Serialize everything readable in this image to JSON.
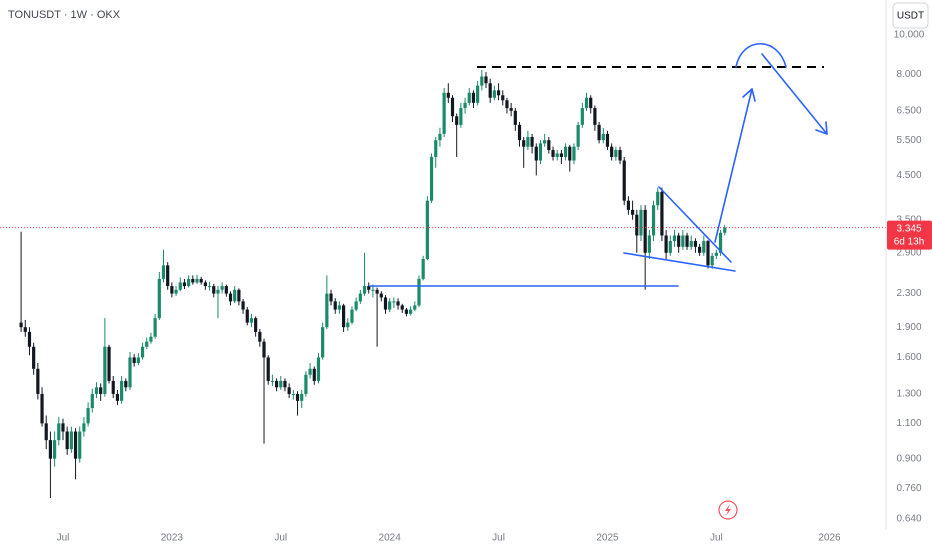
{
  "chart_data": {
    "type": "candlestick",
    "title": "TONUSDT · 1W · OKX",
    "currency": "USDT",
    "last_price": 3.345,
    "countdown": "6d 13h",
    "log_scale": true,
    "grid": false,
    "up_color": "#1b8a6b",
    "down_color": "#131722",
    "last_price_color": "#f23645",
    "ylim": [
      0.6,
      12.2
    ],
    "yticks": [
      {
        "value": 10,
        "label": "10.000"
      },
      {
        "value": 8,
        "label": "8.000"
      },
      {
        "value": 6.5,
        "label": "6.500"
      },
      {
        "value": 5.5,
        "label": "5.500"
      },
      {
        "value": 4.5,
        "label": "4.500"
      },
      {
        "value": 3.5,
        "label": "3.500"
      },
      {
        "value": 2.9,
        "label": "2.900"
      },
      {
        "value": 2.3,
        "label": "2.300"
      },
      {
        "value": 1.9,
        "label": "1.900"
      },
      {
        "value": 1.6,
        "label": "1.600"
      },
      {
        "value": 1.3,
        "label": "1.300"
      },
      {
        "value": 1.1,
        "label": "1.100"
      },
      {
        "value": 0.9,
        "label": "0.900"
      },
      {
        "value": 0.76,
        "label": "0.760"
      },
      {
        "value": 0.64,
        "label": "0.640"
      }
    ],
    "categories": [
      null,
      null,
      null,
      null,
      null,
      null,
      null,
      null,
      null,
      null,
      "Jul",
      null,
      null,
      null,
      null,
      null,
      null,
      null,
      null,
      null,
      null,
      null,
      null,
      null,
      null,
      null,
      null,
      null,
      null,
      null,
      null,
      null,
      null,
      null,
      null,
      null,
      "2023",
      null,
      null,
      null,
      null,
      null,
      null,
      null,
      null,
      null,
      null,
      null,
      null,
      null,
      null,
      null,
      null,
      null,
      null,
      null,
      null,
      null,
      null,
      null,
      null,
      null,
      "Jul",
      null,
      null,
      null,
      null,
      null,
      null,
      null,
      null,
      null,
      null,
      null,
      null,
      null,
      null,
      null,
      null,
      null,
      null,
      null,
      null,
      null,
      null,
      null,
      null,
      null,
      "2024",
      null,
      null,
      null,
      null,
      null,
      null,
      null,
      null,
      null,
      null,
      null,
      null,
      null,
      null,
      null,
      null,
      null,
      null,
      null,
      null,
      null,
      null,
      null,
      null,
      null,
      "Jul",
      null,
      null,
      null,
      null,
      null,
      null,
      null,
      null,
      null,
      null,
      null,
      null,
      null,
      null,
      null,
      null,
      null,
      null,
      null,
      null,
      null,
      null,
      null,
      null,
      null,
      "2025",
      null,
      null,
      null,
      null,
      null,
      null,
      null,
      null,
      null,
      null,
      null,
      null,
      null,
      null,
      null,
      null,
      null,
      null,
      null,
      null,
      null,
      null,
      null,
      null,
      null,
      "Jul",
      null,
      null,
      null,
      null,
      null,
      null,
      null,
      null,
      null,
      null,
      null,
      null,
      null,
      null,
      null,
      null,
      null,
      null,
      null,
      null,
      null,
      null,
      null,
      null,
      null,
      null,
      "2026",
      null,
      null,
      null,
      null,
      null,
      null,
      null,
      null,
      null,
      null,
      null,
      null,
      null
    ],
    "ohlc": [
      [
        1.95,
        3.27,
        1.85,
        1.9
      ],
      [
        1.9,
        1.98,
        1.8,
        1.85
      ],
      [
        1.85,
        1.9,
        1.62,
        1.7
      ],
      [
        1.7,
        1.74,
        1.45,
        1.5
      ],
      [
        1.5,
        1.55,
        1.26,
        1.3
      ],
      [
        1.3,
        1.35,
        1.08,
        1.1
      ],
      [
        1.1,
        1.15,
        0.95,
        1.0
      ],
      [
        1.0,
        1.05,
        0.72,
        0.9
      ],
      [
        0.9,
        1.05,
        0.86,
        1.0
      ],
      [
        1.0,
        1.14,
        0.97,
        1.1
      ],
      [
        1.1,
        1.13,
        1.0,
        1.05
      ],
      [
        1.05,
        1.08,
        0.92,
        0.95
      ],
      [
        0.95,
        1.08,
        0.93,
        1.05
      ],
      [
        1.05,
        1.07,
        0.8,
        0.9
      ],
      [
        0.9,
        1.08,
        0.88,
        1.05
      ],
      [
        1.05,
        1.14,
        1.02,
        1.1
      ],
      [
        1.1,
        1.24,
        1.08,
        1.2
      ],
      [
        1.2,
        1.34,
        1.17,
        1.3
      ],
      [
        1.3,
        1.39,
        1.27,
        1.35
      ],
      [
        1.35,
        1.38,
        1.25,
        1.3
      ],
      [
        1.3,
        2.0,
        1.28,
        1.7
      ],
      [
        1.7,
        1.72,
        1.38,
        1.4
      ],
      [
        1.4,
        1.44,
        1.27,
        1.3
      ],
      [
        1.3,
        1.33,
        1.22,
        1.25
      ],
      [
        1.25,
        1.44,
        1.23,
        1.4
      ],
      [
        1.4,
        1.42,
        1.32,
        1.35
      ],
      [
        1.35,
        1.65,
        1.33,
        1.6
      ],
      [
        1.6,
        1.63,
        1.52,
        1.55
      ],
      [
        1.55,
        1.64,
        1.53,
        1.6
      ],
      [
        1.6,
        1.74,
        1.58,
        1.7
      ],
      [
        1.7,
        1.79,
        1.68,
        1.75
      ],
      [
        1.75,
        1.84,
        1.73,
        1.8
      ],
      [
        1.8,
        2.05,
        1.78,
        2.0
      ],
      [
        2.0,
        2.6,
        1.98,
        2.5
      ],
      [
        2.5,
        2.95,
        2.45,
        2.7
      ],
      [
        2.7,
        2.75,
        2.35,
        2.4
      ],
      [
        2.4,
        2.45,
        2.25,
        2.3
      ],
      [
        2.3,
        2.4,
        2.27,
        2.35
      ],
      [
        2.35,
        2.52,
        2.33,
        2.45
      ],
      [
        2.45,
        2.5,
        2.36,
        2.4
      ],
      [
        2.4,
        2.55,
        2.38,
        2.5
      ],
      [
        2.5,
        2.55,
        2.42,
        2.45
      ],
      [
        2.45,
        2.56,
        2.43,
        2.5
      ],
      [
        2.5,
        2.53,
        2.42,
        2.45
      ],
      [
        2.45,
        2.48,
        2.35,
        2.4
      ],
      [
        2.4,
        2.46,
        2.34,
        2.4
      ],
      [
        2.4,
        2.43,
        2.25,
        2.3
      ],
      [
        2.3,
        2.4,
        2.0,
        2.35
      ],
      [
        2.35,
        2.45,
        2.3,
        2.4
      ],
      [
        2.4,
        2.42,
        2.26,
        2.3
      ],
      [
        2.3,
        2.33,
        2.15,
        2.2
      ],
      [
        2.2,
        2.4,
        2.18,
        2.35
      ],
      [
        2.35,
        2.37,
        2.15,
        2.2
      ],
      [
        2.2,
        2.23,
        2.05,
        2.1
      ],
      [
        2.1,
        2.13,
        1.92,
        1.95
      ],
      [
        1.95,
        2.05,
        1.9,
        2.0
      ],
      [
        2.0,
        2.02,
        1.8,
        1.85
      ],
      [
        1.85,
        1.88,
        1.7,
        1.75
      ],
      [
        1.75,
        1.78,
        0.98,
        1.6
      ],
      [
        1.6,
        1.62,
        1.37,
        1.4
      ],
      [
        1.4,
        1.45,
        1.36,
        1.4
      ],
      [
        1.4,
        1.42,
        1.32,
        1.35
      ],
      [
        1.35,
        1.44,
        1.33,
        1.4
      ],
      [
        1.4,
        1.42,
        1.32,
        1.35
      ],
      [
        1.35,
        1.38,
        1.27,
        1.3
      ],
      [
        1.3,
        1.33,
        1.26,
        1.3
      ],
      [
        1.3,
        1.32,
        1.15,
        1.25
      ],
      [
        1.25,
        1.33,
        1.2,
        1.3
      ],
      [
        1.3,
        1.48,
        1.28,
        1.45
      ],
      [
        1.45,
        1.55,
        1.42,
        1.5
      ],
      [
        1.5,
        1.52,
        1.37,
        1.4
      ],
      [
        1.4,
        1.64,
        1.38,
        1.6
      ],
      [
        1.6,
        1.95,
        1.58,
        1.9
      ],
      [
        1.9,
        2.55,
        1.88,
        2.3
      ],
      [
        2.3,
        2.35,
        2.15,
        2.2
      ],
      [
        2.2,
        2.24,
        2.05,
        2.1
      ],
      [
        2.1,
        2.2,
        2.05,
        2.15
      ],
      [
        2.15,
        2.17,
        1.85,
        1.9
      ],
      [
        1.9,
        2.0,
        1.86,
        1.95
      ],
      [
        1.95,
        2.14,
        1.93,
        2.1
      ],
      [
        2.1,
        2.25,
        2.08,
        2.2
      ],
      [
        2.2,
        2.35,
        2.17,
        2.3
      ],
      [
        2.3,
        2.9,
        2.27,
        2.4
      ],
      [
        2.4,
        2.45,
        2.3,
        2.35
      ],
      [
        2.35,
        2.42,
        2.25,
        2.35
      ],
      [
        2.35,
        2.38,
        1.7,
        2.3
      ],
      [
        2.3,
        2.33,
        2.2,
        2.25
      ],
      [
        2.25,
        2.28,
        2.05,
        2.1
      ],
      [
        2.1,
        2.24,
        2.07,
        2.2
      ],
      [
        2.2,
        2.25,
        2.12,
        2.2
      ],
      [
        2.2,
        2.24,
        2.1,
        2.15
      ],
      [
        2.15,
        2.17,
        2.06,
        2.1
      ],
      [
        2.1,
        2.12,
        2.02,
        2.05
      ],
      [
        2.05,
        2.14,
        2.03,
        2.1
      ],
      [
        2.1,
        2.2,
        2.08,
        2.15
      ],
      [
        2.15,
        2.55,
        2.13,
        2.5
      ],
      [
        2.5,
        2.85,
        2.48,
        2.8
      ],
      [
        2.8,
        4.0,
        2.78,
        3.9
      ],
      [
        3.9,
        5.1,
        3.85,
        5.0
      ],
      [
        5.0,
        5.6,
        4.7,
        5.5
      ],
      [
        5.5,
        5.9,
        5.3,
        5.7
      ],
      [
        5.7,
        7.4,
        5.6,
        7.2
      ],
      [
        7.2,
        7.6,
        6.8,
        7.0
      ],
      [
        7.0,
        7.1,
        6.1,
        6.3
      ],
      [
        6.3,
        6.4,
        5.0,
        6.0
      ],
      [
        6.0,
        6.8,
        5.9,
        6.6
      ],
      [
        6.6,
        7.0,
        6.4,
        6.8
      ],
      [
        6.8,
        7.4,
        6.7,
        7.2
      ],
      [
        7.2,
        7.3,
        6.6,
        6.8
      ],
      [
        6.8,
        7.7,
        6.7,
        7.5
      ],
      [
        7.5,
        8.2,
        7.3,
        7.9
      ],
      [
        7.9,
        8.1,
        7.4,
        7.6
      ],
      [
        7.6,
        7.8,
        6.8,
        7.0
      ],
      [
        7.0,
        7.5,
        6.9,
        7.3
      ],
      [
        7.3,
        7.6,
        6.9,
        7.1
      ],
      [
        7.1,
        7.3,
        6.7,
        6.9
      ],
      [
        6.9,
        7.0,
        6.4,
        6.6
      ],
      [
        6.6,
        6.8,
        6.3,
        6.5
      ],
      [
        6.5,
        6.6,
        5.8,
        6.0
      ],
      [
        6.0,
        6.1,
        5.3,
        5.5
      ],
      [
        5.5,
        5.6,
        4.7,
        5.3
      ],
      [
        5.3,
        5.8,
        5.2,
        5.6
      ],
      [
        5.6,
        5.7,
        5.1,
        5.3
      ],
      [
        5.3,
        5.4,
        4.5,
        4.9
      ],
      [
        4.9,
        5.5,
        4.8,
        5.4
      ],
      [
        5.4,
        5.7,
        5.3,
        5.5
      ],
      [
        5.5,
        5.6,
        5.1,
        5.2
      ],
      [
        5.2,
        5.3,
        4.9,
        5.0
      ],
      [
        5.0,
        5.2,
        4.9,
        5.1
      ],
      [
        5.1,
        5.2,
        4.8,
        5.0
      ],
      [
        5.0,
        5.4,
        4.9,
        5.3
      ],
      [
        5.3,
        5.35,
        4.6,
        4.9
      ],
      [
        4.9,
        5.4,
        4.8,
        5.3
      ],
      [
        5.3,
        6.1,
        5.2,
        6.0
      ],
      [
        6.0,
        6.8,
        5.9,
        6.6
      ],
      [
        6.6,
        7.2,
        6.5,
        7.0
      ],
      [
        7.0,
        7.1,
        6.4,
        6.6
      ],
      [
        6.6,
        6.7,
        5.8,
        6.0
      ],
      [
        6.0,
        6.1,
        5.4,
        5.5
      ],
      [
        5.5,
        5.9,
        5.4,
        5.7
      ],
      [
        5.7,
        5.8,
        5.2,
        5.3
      ],
      [
        5.3,
        5.4,
        4.9,
        5.0
      ],
      [
        5.0,
        5.3,
        4.9,
        5.2
      ],
      [
        5.2,
        5.3,
        4.8,
        4.9
      ],
      [
        4.9,
        5.0,
        3.8,
        3.9
      ],
      [
        3.9,
        4.0,
        3.6,
        3.7
      ],
      [
        3.7,
        3.9,
        3.5,
        3.6
      ],
      [
        3.6,
        3.7,
        2.9,
        3.2
      ],
      [
        3.2,
        3.8,
        3.1,
        3.7
      ],
      [
        3.7,
        3.8,
        2.35,
        2.9
      ],
      [
        2.9,
        3.3,
        2.8,
        3.2
      ],
      [
        3.2,
        3.9,
        3.1,
        3.8
      ],
      [
        3.8,
        4.2,
        3.7,
        4.1
      ],
      [
        4.1,
        4.2,
        3.1,
        3.2
      ],
      [
        3.2,
        3.3,
        2.8,
        2.9
      ],
      [
        2.9,
        3.2,
        2.85,
        3.1
      ],
      [
        3.1,
        3.3,
        3.0,
        3.2
      ],
      [
        3.2,
        3.25,
        2.9,
        3.0
      ],
      [
        3.0,
        3.3,
        2.95,
        3.2
      ],
      [
        3.2,
        3.25,
        2.95,
        3.0
      ],
      [
        3.0,
        3.2,
        2.95,
        3.1
      ],
      [
        3.1,
        3.15,
        2.9,
        3.0
      ],
      [
        3.0,
        3.05,
        2.85,
        2.9
      ],
      [
        2.9,
        3.2,
        2.85,
        3.1
      ],
      [
        3.1,
        3.12,
        2.65,
        2.7
      ],
      [
        2.7,
        2.9,
        2.65,
        2.85
      ],
      [
        2.85,
        2.95,
        2.8,
        2.9
      ],
      [
        2.9,
        3.3,
        2.85,
        3.25
      ],
      [
        3.25,
        3.4,
        3.2,
        3.345
      ],
      null,
      null,
      null,
      null,
      null,
      null,
      null,
      null,
      null,
      null,
      null,
      null,
      null,
      null,
      null,
      null,
      null,
      null,
      null,
      null,
      null,
      null,
      null,
      null,
      null,
      null,
      null,
      null,
      null,
      null,
      null,
      null,
      null,
      null,
      null,
      null,
      null,
      null
    ]
  }
}
